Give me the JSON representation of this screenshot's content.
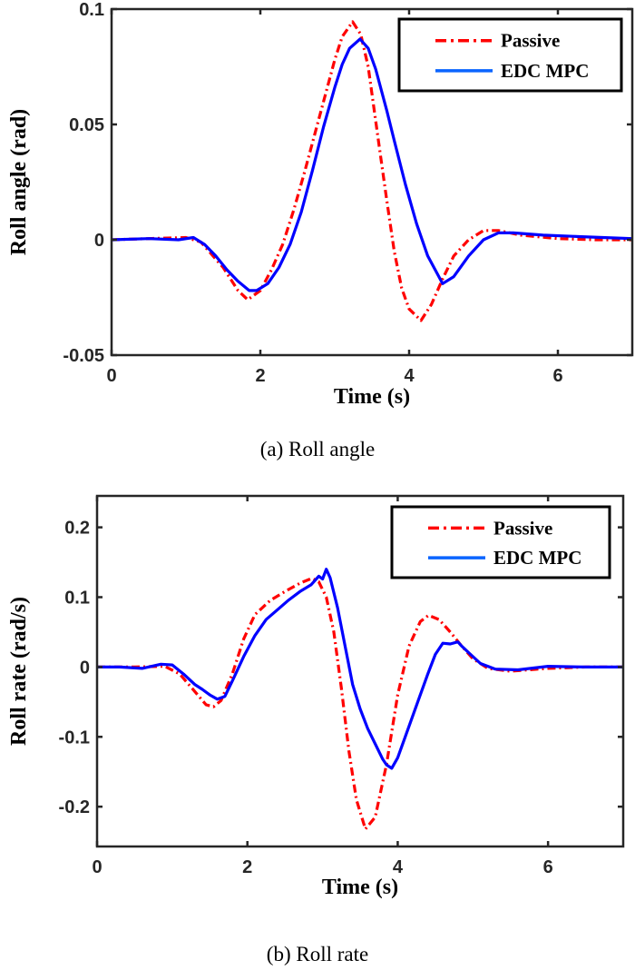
{
  "chart_data": [
    {
      "type": "line",
      "title": "",
      "caption": "(a) Roll angle",
      "xlabel": "Time (s)",
      "ylabel": "Roll angle (rad)",
      "xlim": [
        0,
        7
      ],
      "ylim": [
        -0.05,
        0.1
      ],
      "xticks": [
        0,
        2,
        4,
        6
      ],
      "xtick_labels": [
        "0",
        "2",
        "4",
        "6"
      ],
      "yticks": [
        -0.05,
        0,
        0.05,
        0.1
      ],
      "ytick_labels": [
        "-0.05",
        "0",
        "0.05",
        "0.1"
      ],
      "grid": false,
      "legend_position": "top-right",
      "series": [
        {
          "name": "Passive",
          "color": "#ff0000",
          "style": "dash-dot",
          "x": [
            0,
            0.5,
            1.0,
            1.2,
            1.5,
            1.7,
            1.83,
            2.0,
            2.15,
            2.3,
            2.45,
            2.6,
            2.75,
            2.9,
            3.0,
            3.1,
            3.24,
            3.35,
            3.45,
            3.6,
            3.7,
            3.8,
            3.9,
            4.0,
            4.16,
            4.3,
            4.45,
            4.6,
            4.8,
            5.0,
            5.2,
            5.5,
            6.0,
            6.5,
            7.0
          ],
          "y": [
            0,
            0.0005,
            0.001,
            -0.001,
            -0.012,
            -0.022,
            -0.026,
            -0.022,
            -0.013,
            -0.002,
            0.013,
            0.03,
            0.048,
            0.066,
            0.078,
            0.088,
            0.0945,
            0.089,
            0.075,
            0.04,
            0.017,
            -0.005,
            -0.021,
            -0.03,
            -0.035,
            -0.028,
            -0.017,
            -0.007,
            0.0,
            0.004,
            0.004,
            0.002,
            0.0005,
            0.0,
            0.0
          ]
        },
        {
          "name": "EDC MPC",
          "color": "#0000ff",
          "style": "solid",
          "x": [
            0,
            0.5,
            0.9,
            1.1,
            1.25,
            1.4,
            1.55,
            1.7,
            1.85,
            1.95,
            2.1,
            2.25,
            2.4,
            2.55,
            2.7,
            2.85,
            3.0,
            3.1,
            3.2,
            3.34,
            3.45,
            3.55,
            3.7,
            3.8,
            3.95,
            4.1,
            4.25,
            4.45,
            4.6,
            4.8,
            5.0,
            5.2,
            5.4,
            5.8,
            6.2,
            6.6,
            7.0
          ],
          "y": [
            0,
            0.0005,
            0.0,
            0.001,
            -0.002,
            -0.007,
            -0.013,
            -0.018,
            -0.022,
            -0.022,
            -0.019,
            -0.012,
            -0.002,
            0.012,
            0.03,
            0.049,
            0.066,
            0.076,
            0.083,
            0.087,
            0.083,
            0.074,
            0.056,
            0.043,
            0.024,
            0.007,
            -0.007,
            -0.019,
            -0.016,
            -0.007,
            0.0,
            0.003,
            0.003,
            0.002,
            0.0015,
            0.001,
            0.0005
          ]
        }
      ]
    },
    {
      "type": "line",
      "title": "",
      "caption": "(b)  Roll rate",
      "xlabel": "Time (s)",
      "ylabel": "Roll rate (rad/s)",
      "xlim": [
        0,
        7
      ],
      "ylim": [
        -0.257,
        0.245
      ],
      "xticks": [
        0,
        2,
        4,
        6
      ],
      "xtick_labels": [
        "0",
        "2",
        "4",
        "6"
      ],
      "yticks": [
        -0.2,
        -0.1,
        0,
        0.1,
        0.2
      ],
      "ytick_labels": [
        "-0.2",
        "-0.1",
        "0",
        "0.1",
        "0.2"
      ],
      "grid": false,
      "legend_position": "top-right",
      "series": [
        {
          "name": "Passive",
          "color": "#ff0000",
          "style": "dash-dot",
          "x": [
            0,
            0.5,
            0.9,
            1.1,
            1.3,
            1.45,
            1.55,
            1.65,
            1.8,
            1.95,
            2.1,
            2.3,
            2.5,
            2.7,
            2.86,
            2.95,
            3.05,
            3.15,
            3.25,
            3.35,
            3.45,
            3.57,
            3.7,
            3.85,
            4.0,
            4.15,
            4.3,
            4.41,
            4.55,
            4.7,
            4.85,
            5.0,
            5.2,
            5.5,
            6.0,
            6.5,
            7.0
          ],
          "y": [
            0,
            0.0,
            0.001,
            -0.01,
            -0.035,
            -0.054,
            -0.057,
            -0.048,
            -0.01,
            0.04,
            0.075,
            0.095,
            0.108,
            0.12,
            0.127,
            0.122,
            0.1,
            0.05,
            -0.03,
            -0.12,
            -0.19,
            -0.232,
            -0.215,
            -0.14,
            -0.04,
            0.03,
            0.065,
            0.074,
            0.068,
            0.05,
            0.03,
            0.012,
            -0.002,
            -0.006,
            -0.002,
            0.0,
            0.0
          ]
        },
        {
          "name": "EDC MPC",
          "color": "#0000ff",
          "style": "solid",
          "x": [
            0,
            0.3,
            0.6,
            0.85,
            1.0,
            1.15,
            1.3,
            1.4,
            1.5,
            1.6,
            1.7,
            1.8,
            1.95,
            2.1,
            2.25,
            2.4,
            2.55,
            2.7,
            2.85,
            2.95,
            3.0,
            3.05,
            3.1,
            3.2,
            3.3,
            3.4,
            3.5,
            3.6,
            3.7,
            3.8,
            3.85,
            3.92,
            4.0,
            4.1,
            4.2,
            4.3,
            4.4,
            4.5,
            4.6,
            4.7,
            4.8,
            4.85,
            4.95,
            5.1,
            5.3,
            5.6,
            6.0,
            6.5,
            7.0
          ],
          "y": [
            0,
            0.0,
            -0.002,
            0.004,
            0.003,
            -0.01,
            -0.025,
            -0.032,
            -0.04,
            -0.046,
            -0.042,
            -0.02,
            0.015,
            0.045,
            0.068,
            0.082,
            0.096,
            0.108,
            0.118,
            0.13,
            0.126,
            0.14,
            0.128,
            0.085,
            0.03,
            -0.025,
            -0.06,
            -0.088,
            -0.11,
            -0.132,
            -0.14,
            -0.145,
            -0.13,
            -0.1,
            -0.07,
            -0.04,
            -0.01,
            0.018,
            0.034,
            0.033,
            0.036,
            0.03,
            0.02,
            0.005,
            -0.003,
            -0.004,
            0.001,
            0.0,
            0.0
          ]
        }
      ]
    }
  ]
}
